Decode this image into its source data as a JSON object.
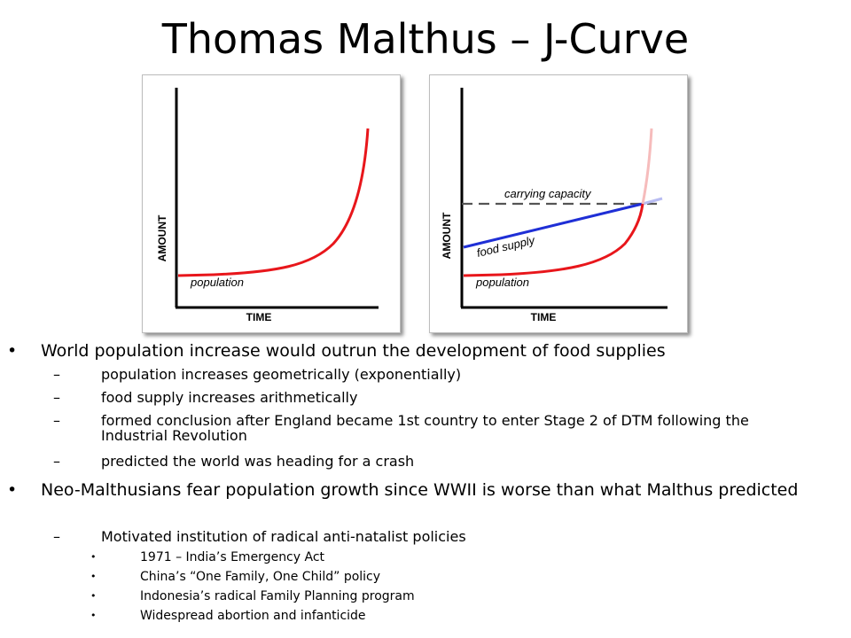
{
  "slide": {
    "title": "Thomas Malthus – J-Curve"
  },
  "figures": [
    {
      "ylabel": "AMOUNT",
      "xlabel": "TIME",
      "curve_labels": {
        "population": "population"
      },
      "colors": {
        "population": "#e8161b",
        "axes": "#000000"
      }
    },
    {
      "ylabel": "AMOUNT",
      "xlabel": "TIME",
      "curve_labels": {
        "carrying_capacity": "carrying capacity",
        "food_supply": "food supply",
        "population": "population"
      },
      "colors": {
        "population": "#e8161b",
        "food_supply": "#1f2fd6",
        "carrying_capacity": "#555555",
        "axes": "#000000"
      }
    }
  ],
  "bullets": [
    {
      "text": "World population increase would outrun the development of food supplies",
      "children": [
        {
          "text": "population increases geometrically (exponentially)"
        },
        {
          "text": "food supply increases arithmetically"
        },
        {
          "text": "formed conclusion after England became 1st country to enter Stage 2 of DTM following the Industrial Revolution"
        },
        {
          "text": "predicted the world was heading for a crash"
        }
      ]
    },
    {
      "text": "Neo-Malthusians fear population growth since WWII is worse than what  Malthus predicted",
      "children": [
        {
          "text": "Motivated institution of radical anti-natalist policies",
          "children": [
            {
              "text": "1971 – India’s Emergency Act"
            },
            {
              "text": "China’s “One Family, One Child” policy"
            },
            {
              "text": "Indonesia’s radical Family Planning program"
            },
            {
              "text": "Widespread abortion and infanticide"
            }
          ]
        }
      ]
    }
  ]
}
